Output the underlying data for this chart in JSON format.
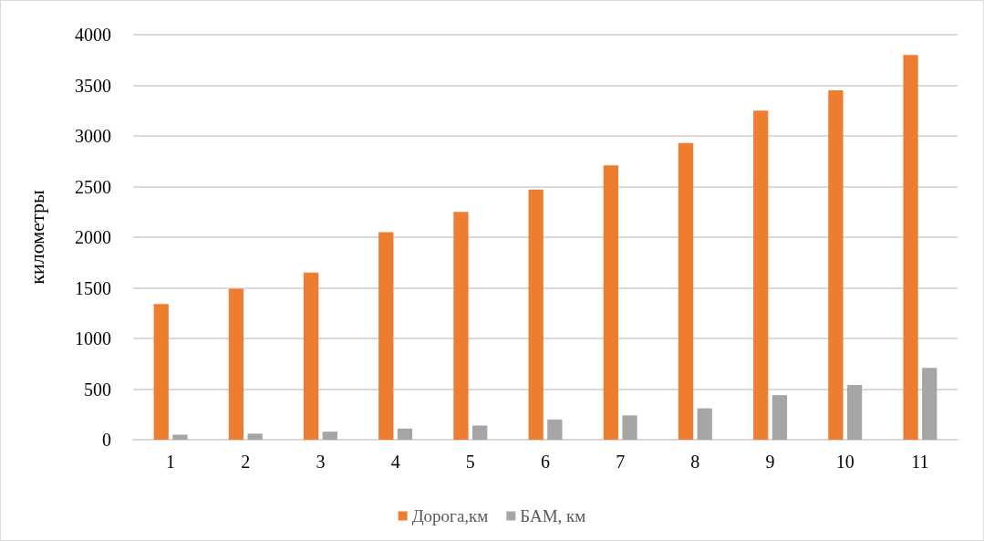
{
  "chart_data": {
    "type": "bar",
    "ylabel": "километры",
    "categories": [
      "1",
      "2",
      "3",
      "4",
      "5",
      "6",
      "7",
      "8",
      "9",
      "10",
      "11"
    ],
    "series": [
      {
        "name": "Дорога,км",
        "color": "#ed7d31",
        "values": [
          1340,
          1490,
          1650,
          2050,
          2250,
          2470,
          2710,
          2930,
          3250,
          3450,
          3800
        ]
      },
      {
        "name": "БАМ, км",
        "color": "#a5a5a5",
        "values": [
          50,
          60,
          80,
          110,
          140,
          200,
          240,
          310,
          440,
          540,
          710
        ]
      }
    ],
    "ylim": [
      0,
      4000
    ],
    "yticks": [
      0,
      500,
      1000,
      1500,
      2000,
      2500,
      3000,
      3500,
      4000
    ],
    "grid": "y",
    "legend": "bottom"
  }
}
